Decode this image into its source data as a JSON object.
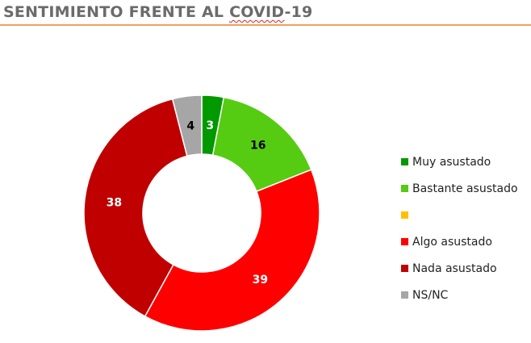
{
  "header": {
    "title_pre": "SENTIMIENTO FRENTE AL ",
    "title_spell": "COVID",
    "title_post": "-19"
  },
  "chart_data": {
    "type": "pie",
    "subtype": "donut",
    "title": "SENTIMIENTO FRENTE AL COVID-19",
    "categories": [
      "Muy asustado",
      "Bastante asustado",
      "",
      "Algo asustado",
      "Nada asustado",
      "NS/NC"
    ],
    "values": [
      3,
      16,
      0,
      39,
      38,
      4
    ],
    "labels": [
      "3",
      "16",
      "",
      "39",
      "38",
      "4"
    ],
    "colors": [
      "#009900",
      "#55cc11",
      "#ffc000",
      "#ff0000",
      "#c00000",
      "#a6a6a6"
    ],
    "label_colors": [
      "#ffffff",
      "#000000",
      "#000000",
      "#ffffff",
      "#ffffff",
      "#000000"
    ],
    "legend_position": "right",
    "start_angle": 0,
    "direction": "clockwise"
  },
  "legend": {
    "items": [
      {
        "label": "Muy asustado",
        "color": "#009900"
      },
      {
        "label": "Bastante asustado",
        "color": "#55cc11"
      },
      {
        "label": "",
        "color": "#ffc000"
      },
      {
        "label": "Algo asustado",
        "color": "#ff0000"
      },
      {
        "label": "Nada asustado",
        "color": "#c00000"
      },
      {
        "label": "NS/NC",
        "color": "#a6a6a6"
      }
    ]
  }
}
